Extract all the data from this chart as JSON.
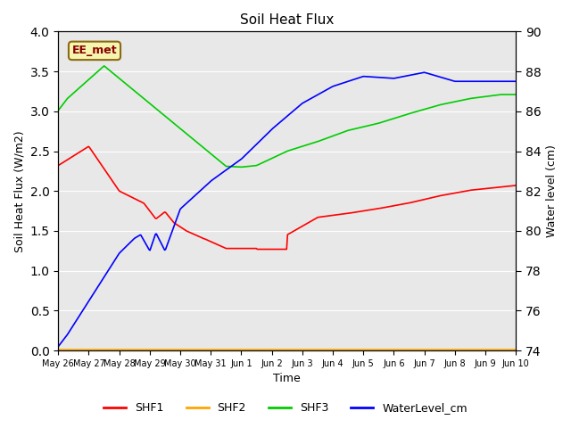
{
  "title": "Soil Heat Flux",
  "xlabel": "Time",
  "ylabel_left": "Soil Heat Flux (W/m2)",
  "ylabel_right": "Water level (cm)",
  "ylim_left": [
    0.0,
    4.0
  ],
  "ylim_right": [
    74,
    90
  ],
  "yticks_left": [
    0.0,
    0.5,
    1.0,
    1.5,
    2.0,
    2.5,
    3.0,
    3.5,
    4.0
  ],
  "yticks_right": [
    74,
    76,
    78,
    80,
    82,
    84,
    86,
    88,
    90
  ],
  "background_color": "#e8e8e8",
  "annotation_text": "EE_met",
  "annotation_bg": "#f5f5b0",
  "annotation_border": "#8b6914",
  "legend_labels": [
    "SHF1",
    "SHF2",
    "SHF3",
    "WaterLevel_cm"
  ],
  "legend_colors": [
    "#ff0000",
    "#ffa500",
    "#00cc00",
    "#0000ff"
  ],
  "line_colors": {
    "SHF1": "#ff0000",
    "SHF2": "#ffa500",
    "SHF3": "#00cc00",
    "WaterLevel": "#0000ff"
  },
  "xtick_labels": [
    "May 26",
    "May 27",
    "May 28",
    "May 29",
    "May 30",
    "May 31",
    "Jun 1",
    "Jun 2",
    "Jun 3",
    "Jun 4",
    "Jun 5",
    "Jun 6",
    "Jun 7",
    "Jun 8",
    "Jun 9",
    "Jun 10"
  ]
}
